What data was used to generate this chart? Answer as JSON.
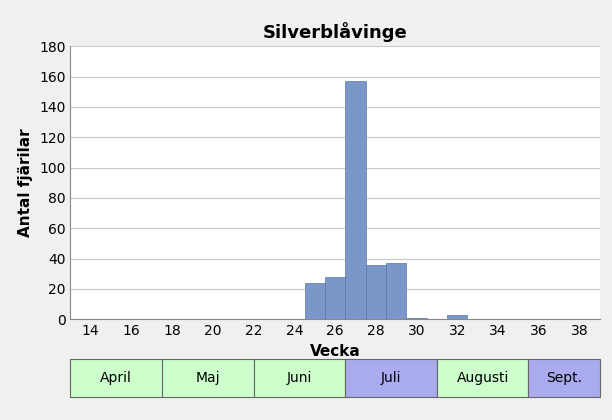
{
  "title": "Silverblåvinge",
  "xlabel": "Vecka",
  "ylabel": "Antal fjärilar",
  "bar_color": "#7b96c8",
  "bar_edgecolor": "#5a75a8",
  "weeks": [
    14,
    15,
    16,
    17,
    18,
    19,
    20,
    21,
    22,
    23,
    24,
    25,
    26,
    27,
    28,
    29,
    30,
    31,
    32,
    33,
    34,
    35,
    36,
    37,
    38
  ],
  "values": [
    0,
    0,
    0,
    0,
    0,
    0,
    0,
    0,
    0,
    0,
    0,
    24,
    28,
    157,
    36,
    37,
    1,
    0,
    3,
    0,
    0,
    0,
    0,
    0,
    0
  ],
  "xlim": [
    13,
    39
  ],
  "ylim": [
    0,
    180
  ],
  "yticks": [
    0,
    20,
    40,
    60,
    80,
    100,
    120,
    140,
    160,
    180
  ],
  "xticks": [
    14,
    16,
    18,
    20,
    22,
    24,
    26,
    28,
    30,
    32,
    34,
    36,
    38
  ],
  "month_labels": [
    {
      "label": "April",
      "xstart": 13.0,
      "xend": 17.5,
      "color": "#ccffcc"
    },
    {
      "label": "Maj",
      "xstart": 17.5,
      "xend": 22.0,
      "color": "#ccffcc"
    },
    {
      "label": "Juni",
      "xstart": 22.0,
      "xend": 26.5,
      "color": "#ccffcc"
    },
    {
      "label": "Juli",
      "xstart": 26.5,
      "xend": 31.0,
      "color": "#aaaaee"
    },
    {
      "label": "Augusti",
      "xstart": 31.0,
      "xend": 35.5,
      "color": "#ccffcc"
    },
    {
      "label": "Sept.",
      "xstart": 35.5,
      "xend": 39.0,
      "color": "#aaaaee"
    }
  ],
  "background_color": "#f0f0f0",
  "plot_bg_color": "#ffffff",
  "grid_color": "#c8c8c8",
  "title_fontsize": 13,
  "axis_label_fontsize": 11,
  "tick_fontsize": 10
}
